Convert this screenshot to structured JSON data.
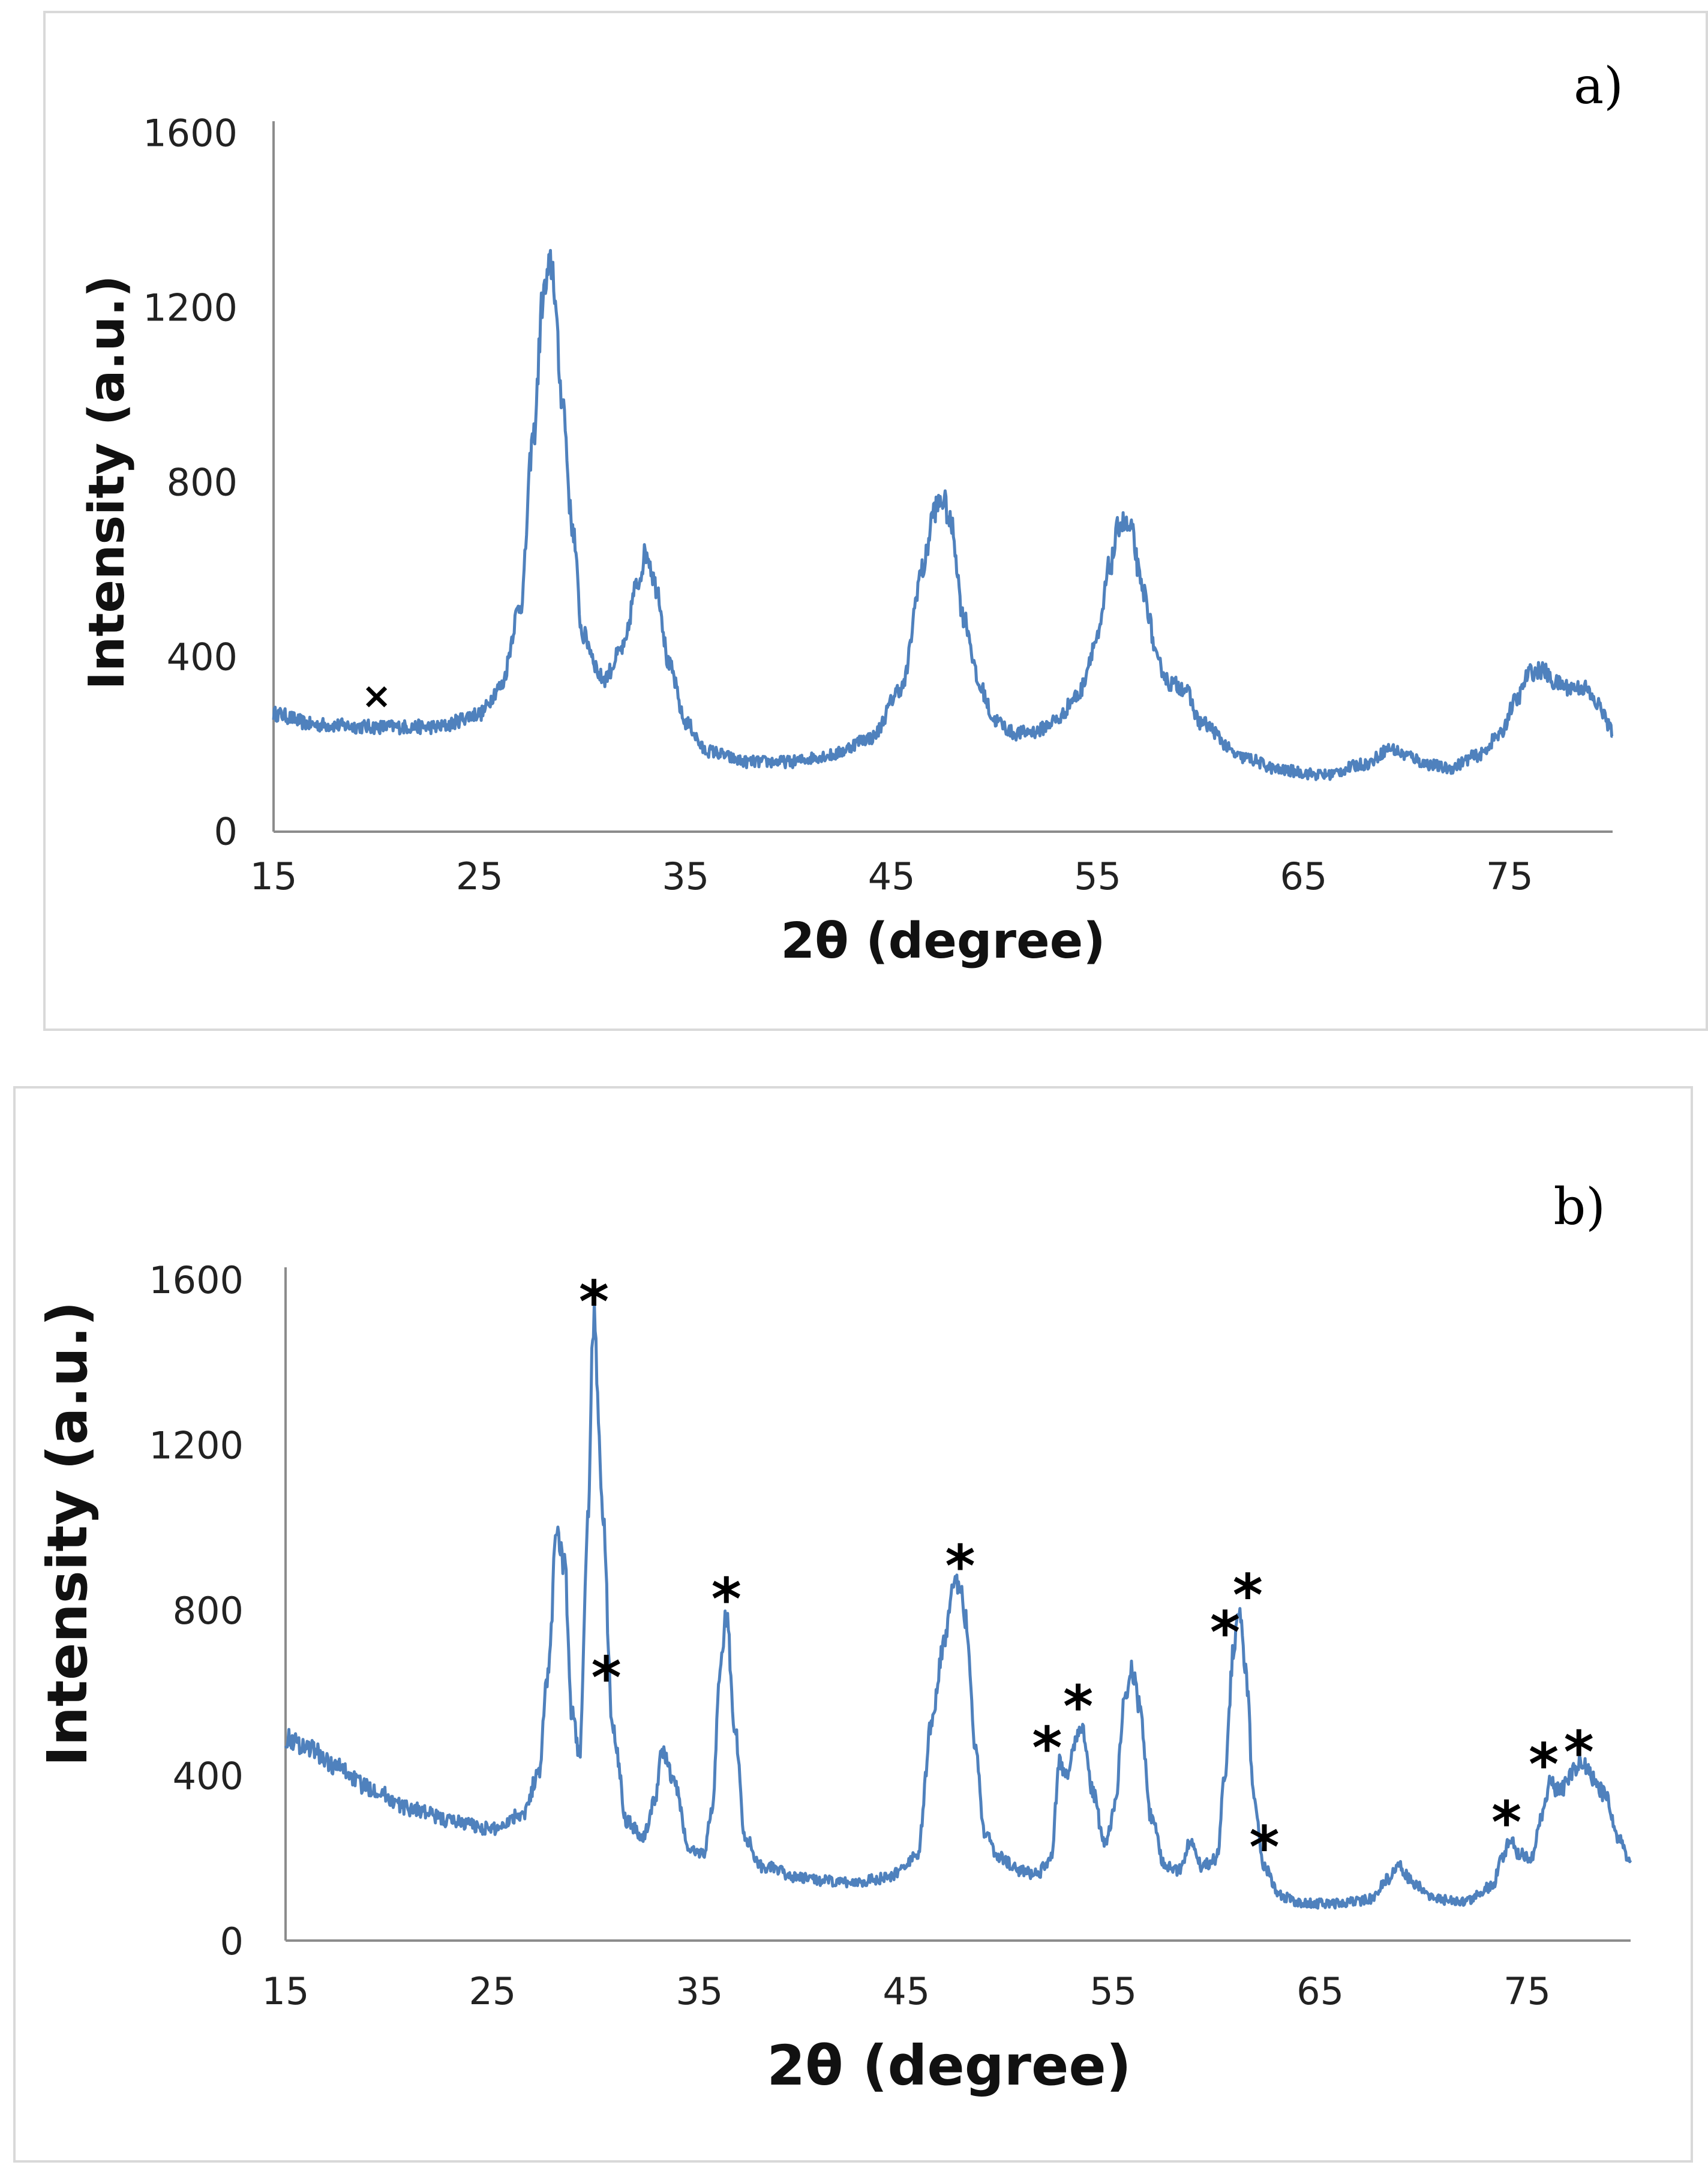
{
  "chart_data": [
    {
      "panel_label": "a)",
      "type": "line",
      "xlabel": "2θ (degree)",
      "ylabel": "Intensity (a.u.)",
      "xlim": [
        15,
        80
      ],
      "ylim": [
        0,
        1600
      ],
      "xticks": [
        "15",
        "25",
        "35",
        "45",
        "55",
        "65",
        "75"
      ],
      "yticks": [
        "0",
        "400",
        "800",
        "1200",
        "1600"
      ],
      "legend": "none",
      "grid": false,
      "series": [
        {
          "name": "XRD pattern a",
          "color": "#4f81bd",
          "x": [
            15,
            17,
            20,
            23,
            25,
            26,
            27,
            27.6,
            28.1,
            28.5,
            29,
            29.5,
            30,
            31,
            32,
            32.6,
            33.1,
            33.6,
            34.2,
            35,
            36,
            38,
            40,
            42,
            44,
            45.5,
            46.5,
            47.1,
            47.5,
            47.9,
            48.5,
            49.3,
            50,
            51,
            52,
            53,
            54,
            55,
            55.6,
            56.1,
            56.6,
            57.2,
            58,
            58.5,
            59.2,
            60,
            62,
            64,
            66,
            68,
            69.2,
            70,
            71,
            72,
            73.5,
            74.5,
            75.3,
            76,
            76.6,
            77.2,
            78,
            78.6,
            79.3,
            80
          ],
          "values": [
            270,
            245,
            240,
            240,
            270,
            330,
            520,
            900,
            1230,
            1300,
            1000,
            700,
            450,
            350,
            420,
            560,
            640,
            560,
            380,
            250,
            185,
            160,
            160,
            175,
            215,
            330,
            600,
            740,
            760,
            700,
            490,
            330,
            255,
            225,
            230,
            255,
            310,
            440,
            610,
            710,
            690,
            550,
            380,
            340,
            330,
            250,
            170,
            140,
            130,
            155,
            190,
            175,
            155,
            145,
            175,
            220,
            300,
            365,
            370,
            340,
            330,
            330,
            290,
            230
          ]
        }
      ],
      "annotations": [
        {
          "text": "×",
          "x": 20,
          "y": 320
        }
      ]
    },
    {
      "panel_label": "b)",
      "type": "line",
      "xlabel": "2θ (degree)",
      "ylabel": "Intensity (a.u.)",
      "xlim": [
        15,
        80
      ],
      "ylim": [
        0,
        1600
      ],
      "xticks": [
        "15",
        "25",
        "35",
        "45",
        "55",
        "65",
        "75"
      ],
      "yticks": [
        "0",
        "400",
        "800",
        "1200",
        "1600"
      ],
      "legend": "none",
      "grid": false,
      "series": [
        {
          "name": "XRD pattern b",
          "color": "#4f81bd",
          "x": [
            15,
            16,
            17.5,
            19,
            21,
            23,
            25,
            26.5,
            27.2,
            27.7,
            28.1,
            28.5,
            28.8,
            29.2,
            29.6,
            29.9,
            30.3,
            30.8,
            31.5,
            32.3,
            32.8,
            33.2,
            33.8,
            34.5,
            35.2,
            35.6,
            36,
            36.3,
            36.7,
            37.2,
            38,
            40,
            42,
            44,
            45.5,
            46.3,
            46.8,
            47.2,
            47.6,
            47.9,
            48.3,
            48.8,
            49.5,
            50.5,
            51.3,
            52,
            52.4,
            52.8,
            53.1,
            53.5,
            54,
            54.6,
            55.1,
            55.5,
            55.9,
            56.3,
            56.8,
            57.5,
            58.2,
            58.7,
            59.3,
            60,
            60.4,
            60.8,
            61.1,
            61.4,
            61.8,
            62.3,
            63,
            64,
            66,
            67.5,
            68.3,
            68.8,
            69.5,
            70.5,
            72,
            73.3,
            73.8,
            74.2,
            74.6,
            75.2,
            75.7,
            76.1,
            76.6,
            77.1,
            77.6,
            78.2,
            78.8,
            79.4,
            80
          ],
          "values": [
            490,
            470,
            420,
            370,
            320,
            290,
            270,
            310,
            400,
            650,
            1000,
            900,
            560,
            450,
            1000,
            1520,
            1050,
            520,
            290,
            250,
            330,
            460,
            380,
            220,
            210,
            310,
            650,
            790,
            520,
            250,
            180,
            150,
            140,
            150,
            200,
            550,
            720,
            840,
            860,
            780,
            480,
            260,
            200,
            170,
            160,
            200,
            430,
            400,
            480,
            520,
            360,
            230,
            330,
            560,
            650,
            560,
            300,
            180,
            170,
            240,
            180,
            200,
            400,
            700,
            790,
            650,
            350,
            180,
            110,
            90,
            90,
            100,
            150,
            180,
            140,
            100,
            95,
            130,
            200,
            250,
            210,
            200,
            300,
            380,
            360,
            400,
            440,
            390,
            350,
            250,
            190
          ]
        }
      ],
      "annotations": [
        {
          "text": "*",
          "x": 29.9,
          "y": 1560
        },
        {
          "text": "*",
          "x": 30.5,
          "y": 650
        },
        {
          "text": "*",
          "x": 36.3,
          "y": 840
        },
        {
          "text": "*",
          "x": 47.6,
          "y": 920
        },
        {
          "text": "*",
          "x": 51.8,
          "y": 480
        },
        {
          "text": "*",
          "x": 53.3,
          "y": 580
        },
        {
          "text": "*",
          "x": 60.4,
          "y": 760
        },
        {
          "text": "*",
          "x": 61.5,
          "y": 850
        },
        {
          "text": "*",
          "x": 62.3,
          "y": 240
        },
        {
          "text": "*",
          "x": 74.0,
          "y": 300
        },
        {
          "text": "*",
          "x": 75.8,
          "y": 440
        },
        {
          "text": "*",
          "x": 77.5,
          "y": 470
        }
      ]
    }
  ]
}
